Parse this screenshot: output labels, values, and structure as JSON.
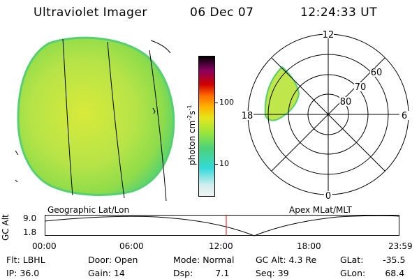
{
  "header": {
    "instrument": "Ultraviolet Imager",
    "date": "06 Dec 07",
    "time": "12:24:33 UT"
  },
  "colorbar": {
    "unit": "photon cm",
    "unit_exp1": "-2",
    "unit_s": "s",
    "unit_exp2": "-1",
    "tick_100": "100",
    "tick_10": "10",
    "stops": [
      "#f2f2f2",
      "#a8f0ec",
      "#33d9d9",
      "#4cd27a",
      "#9ee63a",
      "#e6e61a",
      "#ffb300",
      "#ff3d00",
      "#c00000",
      "#8a0060",
      "#000000"
    ]
  },
  "polar_plot": {
    "mlt_labels": {
      "top": "12",
      "left": "18",
      "right": "6",
      "bottom": "0"
    },
    "lat_labels": [
      "60",
      "70",
      "80"
    ]
  },
  "timeline": {
    "left_label": "Geographic Lat/Lon",
    "right_label": "Apex  MLat/MLT",
    "axis_label": "GC Alt",
    "y_top": "9.0",
    "y_bottom": "1.8",
    "ticks": [
      "00:00",
      "06:00",
      "12:00",
      "18:00",
      "23:59"
    ]
  },
  "info": {
    "flt_label": "Flt:",
    "flt_value": "LBHL",
    "door_label": "Door:",
    "door_value": "Open",
    "mode_label": "Mode:",
    "mode_value": "Normal",
    "gcalt_label": "GC Alt:",
    "gcalt_value": "4.3 Re",
    "glat_label": "GLat:",
    "glat_value": "-35.5",
    "ip_label": "IP:",
    "ip_value": "36.0",
    "gain_label": "Gain:",
    "gain_value": "14",
    "dsp_label": "Dsp:",
    "dsp_value": "7.1",
    "seq_label": "Seq:",
    "seq_value": "39",
    "glon_label": "GLon:",
    "glon_value": "68.4"
  },
  "colors": {
    "disk_fill": "#bfe64a",
    "disk_edge": "#4cd27a",
    "time_marker": "#ff0000"
  }
}
